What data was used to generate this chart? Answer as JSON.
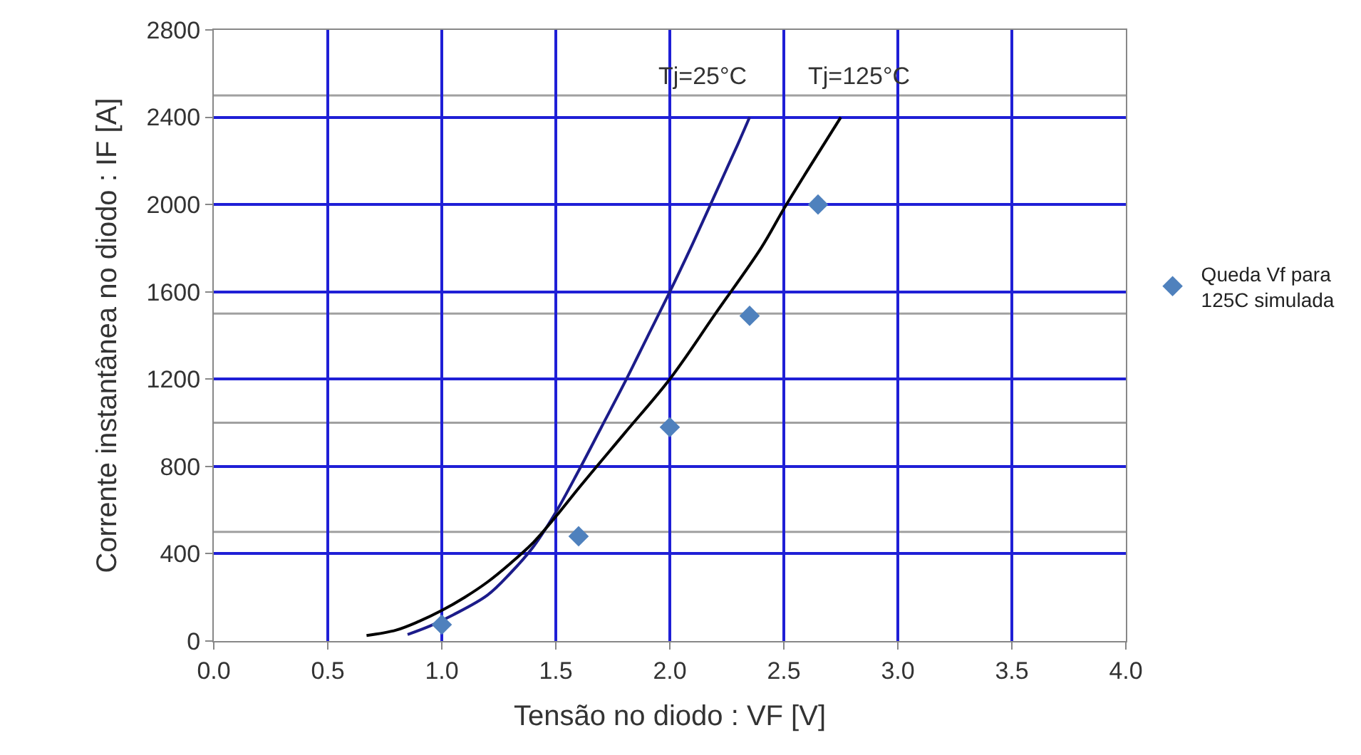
{
  "chart_data": {
    "type": "line",
    "xlabel": "Tensão no diodo : VF [V]",
    "ylabel": "Corrente instantânea no diodo : IF [A]",
    "series": [
      {
        "name": "Tj=25°C",
        "color": "#1c1c8a",
        "x": [
          0.85,
          0.95,
          1.05,
          1.2,
          1.3,
          1.4,
          1.5,
          1.6,
          1.7,
          1.8,
          1.9,
          2.0,
          2.1,
          2.2,
          2.3,
          2.35
        ],
        "values": [
          30,
          70,
          120,
          210,
          310,
          430,
          590,
          780,
          980,
          1180,
          1390,
          1600,
          1820,
          2050,
          2280,
          2400
        ]
      },
      {
        "name": "Tj=125°C",
        "color": "#000000",
        "x": [
          0.67,
          0.8,
          0.9,
          1.0,
          1.1,
          1.2,
          1.3,
          1.4,
          1.5,
          1.6,
          1.8,
          2.0,
          2.2,
          2.4,
          2.5,
          2.6,
          2.75
        ],
        "values": [
          25,
          50,
          90,
          140,
          200,
          270,
          355,
          450,
          570,
          700,
          950,
          1200,
          1500,
          1800,
          1980,
          2150,
          2400
        ]
      },
      {
        "name": "Queda Vf para 125C simulada",
        "type": "scatter",
        "marker": "diamond",
        "color": "#4f81bd",
        "x": [
          1.0,
          1.6,
          2.0,
          2.35,
          2.65
        ],
        "values": [
          75,
          480,
          980,
          1490,
          2000
        ]
      }
    ],
    "xlim": [
      0,
      4
    ],
    "xticks": [
      {
        "value": 0,
        "label": "0.0"
      },
      {
        "value": 0.5,
        "label": "0.5"
      },
      {
        "value": 1,
        "label": "1.0"
      },
      {
        "value": 1.5,
        "label": "1.5"
      },
      {
        "value": 2,
        "label": "2.0"
      },
      {
        "value": 2.5,
        "label": "2.5"
      },
      {
        "value": 3,
        "label": "3.0"
      },
      {
        "value": 3.5,
        "label": "3.5"
      },
      {
        "value": 4,
        "label": "4.0"
      }
    ],
    "ylim": [
      0,
      2800
    ],
    "yticks": [
      0,
      400,
      800,
      1200,
      1600,
      2000,
      2400,
      2800
    ],
    "grid": true,
    "legend": "right",
    "marker": "none",
    "line_style": "solid",
    "ref_lines": [
      {
        "axis": "y",
        "value": 500,
        "color": "#a0a0a0"
      },
      {
        "axis": "y",
        "value": 1000,
        "color": "#a0a0a0"
      },
      {
        "axis": "y",
        "value": 1500,
        "color": "#a0a0a0"
      },
      {
        "axis": "y",
        "value": 2500,
        "color": "#a0a0a0"
      }
    ]
  }
}
